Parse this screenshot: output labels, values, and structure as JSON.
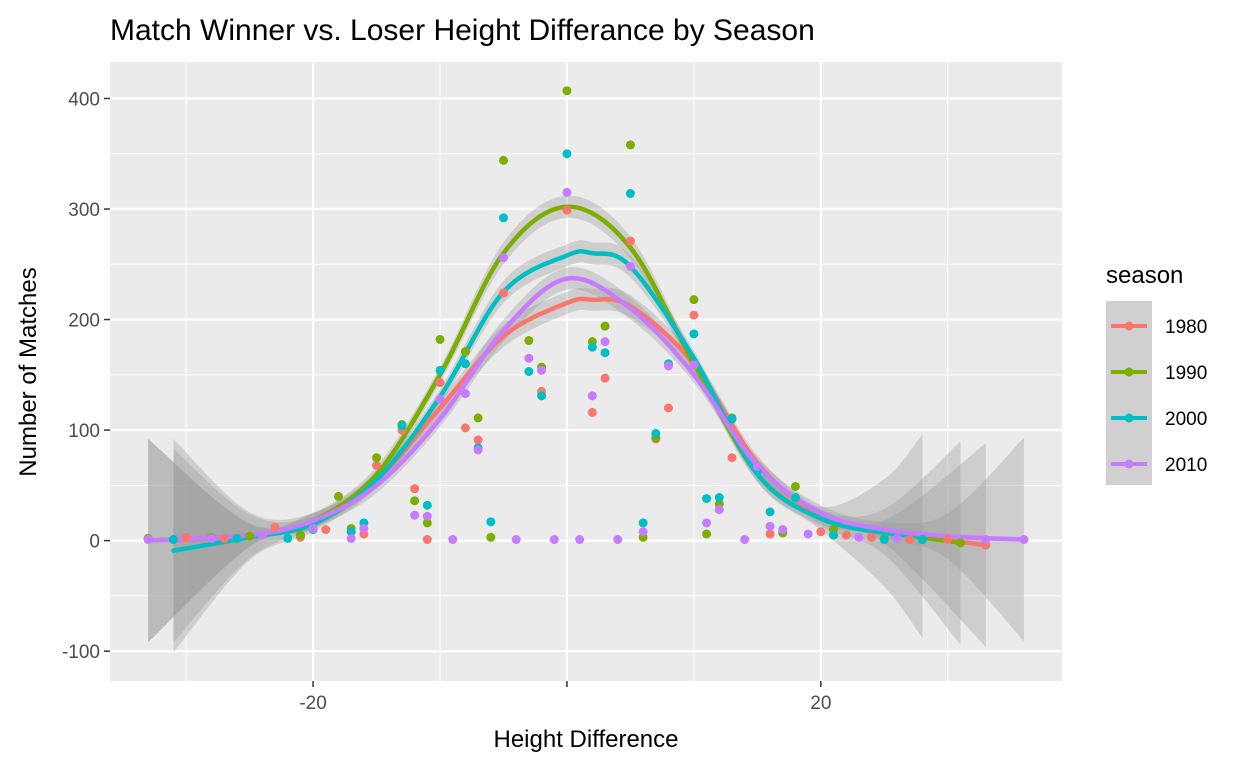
{
  "chart_data": {
    "type": "scatter",
    "title": "Match Winner vs. Loser Height Differance by Season",
    "xlabel": "Height Difference",
    "ylabel": "Number of Matches",
    "xlim": [
      -36,
      39
    ],
    "ylim": [
      -127,
      433
    ],
    "x_ticks": [
      -20,
      0,
      20
    ],
    "x_tick_labels": [
      "-20",
      "",
      "20"
    ],
    "y_ticks": [
      -100,
      0,
      100,
      200,
      300,
      400
    ],
    "y_tick_labels": [
      "-100",
      "0",
      "100",
      "200",
      "300",
      "400"
    ],
    "grid": true,
    "background": "#ebebeb",
    "legend": {
      "title": "season",
      "position": "right",
      "entries": [
        "1980",
        "1990",
        "2000",
        "2010"
      ]
    },
    "smooth": {
      "method": "loess",
      "confidence_band": true,
      "band_color": "#999999"
    },
    "series": [
      {
        "name": "1980",
        "color": "#f8766d",
        "points": [
          [
            -33,
            2
          ],
          [
            -30,
            3
          ],
          [
            -27,
            2
          ],
          [
            -25,
            4
          ],
          [
            -23,
            12
          ],
          [
            -21,
            3
          ],
          [
            -19,
            10
          ],
          [
            -17,
            8
          ],
          [
            -16,
            6
          ],
          [
            -15,
            68
          ],
          [
            -13,
            100
          ],
          [
            -12,
            47
          ],
          [
            -11,
            1
          ],
          [
            -10,
            143
          ],
          [
            -8,
            102
          ],
          [
            -7,
            91
          ],
          [
            -5,
            224
          ],
          [
            -2,
            135
          ],
          [
            0,
            299
          ],
          [
            2,
            116
          ],
          [
            3,
            147
          ],
          [
            5,
            271
          ],
          [
            7,
            92
          ],
          [
            8,
            120
          ],
          [
            10,
            204
          ],
          [
            13,
            75
          ],
          [
            16,
            6
          ],
          [
            17,
            8
          ],
          [
            20,
            8
          ],
          [
            22,
            5
          ],
          [
            24,
            3
          ],
          [
            27,
            1
          ],
          [
            30,
            1
          ],
          [
            33,
            -4
          ]
        ],
        "smooth_x": [
          -31,
          -25,
          -20,
          -15,
          -10,
          -5,
          0,
          2,
          5,
          10,
          15,
          20,
          25,
          33
        ],
        "smooth_y": [
          0,
          5,
          18,
          55,
          120,
          185,
          215,
          218,
          212,
          160,
          70,
          22,
          8,
          -4
        ]
      },
      {
        "name": "1990",
        "color": "#7cae00",
        "points": [
          [
            -33,
            2
          ],
          [
            -28,
            3
          ],
          [
            -25,
            4
          ],
          [
            -21,
            5
          ],
          [
            -18,
            40
          ],
          [
            -17,
            11
          ],
          [
            -15,
            75
          ],
          [
            -13,
            105
          ],
          [
            -12,
            36
          ],
          [
            -11,
            16
          ],
          [
            -10,
            182
          ],
          [
            -8,
            171
          ],
          [
            -7,
            111
          ],
          [
            -6,
            3
          ],
          [
            -5,
            344
          ],
          [
            -3,
            181
          ],
          [
            -2,
            157
          ],
          [
            0,
            407
          ],
          [
            2,
            180
          ],
          [
            3,
            194
          ],
          [
            5,
            358
          ],
          [
            6,
            3
          ],
          [
            7,
            93
          ],
          [
            10,
            218
          ],
          [
            11,
            6
          ],
          [
            12,
            33
          ],
          [
            13,
            111
          ],
          [
            15,
            67
          ],
          [
            17,
            7
          ],
          [
            18,
            49
          ],
          [
            21,
            10
          ],
          [
            25,
            2
          ],
          [
            28,
            1
          ],
          [
            31,
            -2
          ]
        ],
        "smooth_x": [
          -33,
          -25,
          -20,
          -15,
          -10,
          -5,
          0,
          5,
          10,
          15,
          20,
          25,
          31
        ],
        "smooth_y": [
          0,
          5,
          18,
          60,
          150,
          260,
          302,
          265,
          160,
          60,
          20,
          8,
          -2
        ]
      },
      {
        "name": "2000",
        "color": "#00bfc4",
        "points": [
          [
            -31,
            1
          ],
          [
            -26,
            2
          ],
          [
            -22,
            2
          ],
          [
            -20,
            10
          ],
          [
            -17,
            8
          ],
          [
            -16,
            16
          ],
          [
            -13,
            104
          ],
          [
            -11,
            32
          ],
          [
            -10,
            154
          ],
          [
            -8,
            160
          ],
          [
            -7,
            84
          ],
          [
            -6,
            17
          ],
          [
            -5,
            292
          ],
          [
            -3,
            153
          ],
          [
            -2,
            131
          ],
          [
            0,
            350
          ],
          [
            2,
            175
          ],
          [
            3,
            170
          ],
          [
            5,
            314
          ],
          [
            6,
            16
          ],
          [
            7,
            97
          ],
          [
            8,
            160
          ],
          [
            10,
            187
          ],
          [
            11,
            38
          ],
          [
            12,
            39
          ],
          [
            13,
            110
          ],
          [
            15,
            63
          ],
          [
            16,
            26
          ],
          [
            18,
            39
          ],
          [
            21,
            5
          ],
          [
            25,
            1
          ],
          [
            28,
            1
          ]
        ],
        "smooth_x": [
          -31,
          -25,
          -20,
          -15,
          -10,
          -5,
          0,
          2,
          5,
          10,
          15,
          20,
          25,
          28
        ],
        "smooth_y": [
          -9,
          3,
          15,
          55,
          130,
          225,
          258,
          260,
          248,
          165,
          60,
          20,
          7,
          4
        ]
      },
      {
        "name": "2010",
        "color": "#c77cff",
        "points": [
          [
            -33,
            1
          ],
          [
            -28,
            2
          ],
          [
            -24,
            5
          ],
          [
            -20,
            11
          ],
          [
            -17,
            2
          ],
          [
            -16,
            11
          ],
          [
            -12,
            23
          ],
          [
            -11,
            22
          ],
          [
            -10,
            128
          ],
          [
            -9,
            1
          ],
          [
            -8,
            133
          ],
          [
            -7,
            82
          ],
          [
            -5,
            256
          ],
          [
            -4,
            1
          ],
          [
            -3,
            165
          ],
          [
            -2,
            154
          ],
          [
            -1,
            1
          ],
          [
            0,
            315
          ],
          [
            1,
            1
          ],
          [
            2,
            131
          ],
          [
            3,
            180
          ],
          [
            4,
            1
          ],
          [
            5,
            248
          ],
          [
            6,
            8
          ],
          [
            8,
            158
          ],
          [
            10,
            159
          ],
          [
            11,
            16
          ],
          [
            12,
            28
          ],
          [
            14,
            1
          ],
          [
            15,
            67
          ],
          [
            16,
            13
          ],
          [
            17,
            10
          ],
          [
            19,
            6
          ],
          [
            23,
            3
          ],
          [
            26,
            2
          ],
          [
            33,
            1
          ],
          [
            36,
            1
          ]
        ],
        "smooth_x": [
          -33,
          -25,
          -20,
          -15,
          -10,
          -5,
          0,
          5,
          10,
          15,
          20,
          25,
          30,
          36
        ],
        "smooth_y": [
          0,
          5,
          18,
          50,
          110,
          190,
          237,
          210,
          150,
          68,
          25,
          10,
          4,
          1
        ]
      }
    ]
  }
}
